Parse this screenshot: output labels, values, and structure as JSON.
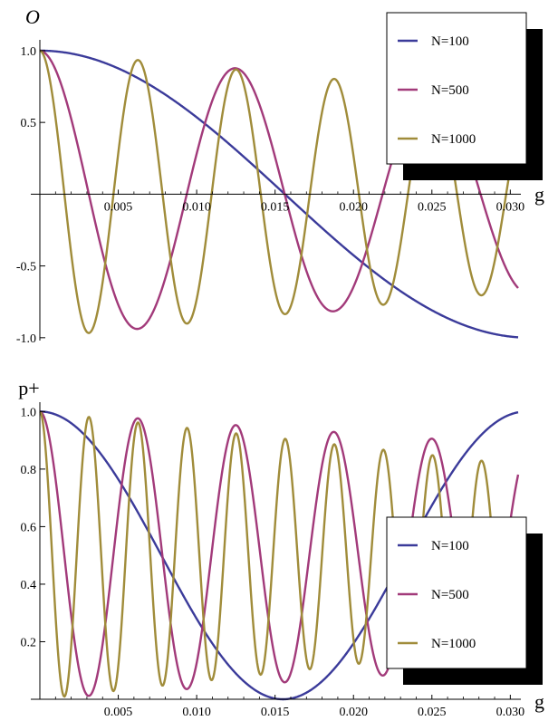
{
  "chart_data": [
    {
      "type": "line",
      "ylabel": "O",
      "xlabel": "g",
      "xlim": [
        0,
        0.0305
      ],
      "ylim": [
        -1.02,
        1.05
      ],
      "xticks": [
        "0.005",
        "0.010",
        "0.015",
        "0.020",
        "0.025",
        "0.030"
      ],
      "yticks": [
        "-1.0",
        "-0.5",
        "0.5",
        "1.0"
      ],
      "legend": {
        "position": "top-right",
        "entries": [
          "N=100",
          "N=500",
          "N=1000"
        ]
      },
      "series": [
        {
          "name": "N=100",
          "color": "#3b3b9a",
          "period": 0.0625,
          "envelope_decay": 0.0
        },
        {
          "name": "N=500",
          "color": "#a23a7a",
          "period": 0.01249,
          "envelope_decay": 0.3
        },
        {
          "name": "N=1000",
          "color": "#a08c3a",
          "period": 0.00626,
          "envelope_decay": 0.32
        }
      ]
    },
    {
      "type": "line",
      "ylabel": "p+",
      "xlabel": "g",
      "xlim": [
        0,
        0.0305
      ],
      "ylim": [
        0,
        1.02
      ],
      "xticks": [
        "0.005",
        "0.010",
        "0.015",
        "0.020",
        "0.025",
        "0.030"
      ],
      "yticks": [
        "0.2",
        "0.4",
        "0.6",
        "0.8",
        "1.0"
      ],
      "legend": {
        "position": "bottom-right",
        "entries": [
          "N=100",
          "N=500",
          "N=1000"
        ]
      },
      "series": [
        {
          "name": "N=100",
          "color": "#3b3b9a",
          "period": 0.031,
          "envelope_decay": 0.0
        },
        {
          "name": "N=500",
          "color": "#a23a7a",
          "period": 0.00625,
          "envelope_decay": 0.23
        },
        {
          "name": "N=1000",
          "color": "#a08c3a",
          "period": 0.00313,
          "envelope_decay": 0.37
        }
      ]
    }
  ]
}
